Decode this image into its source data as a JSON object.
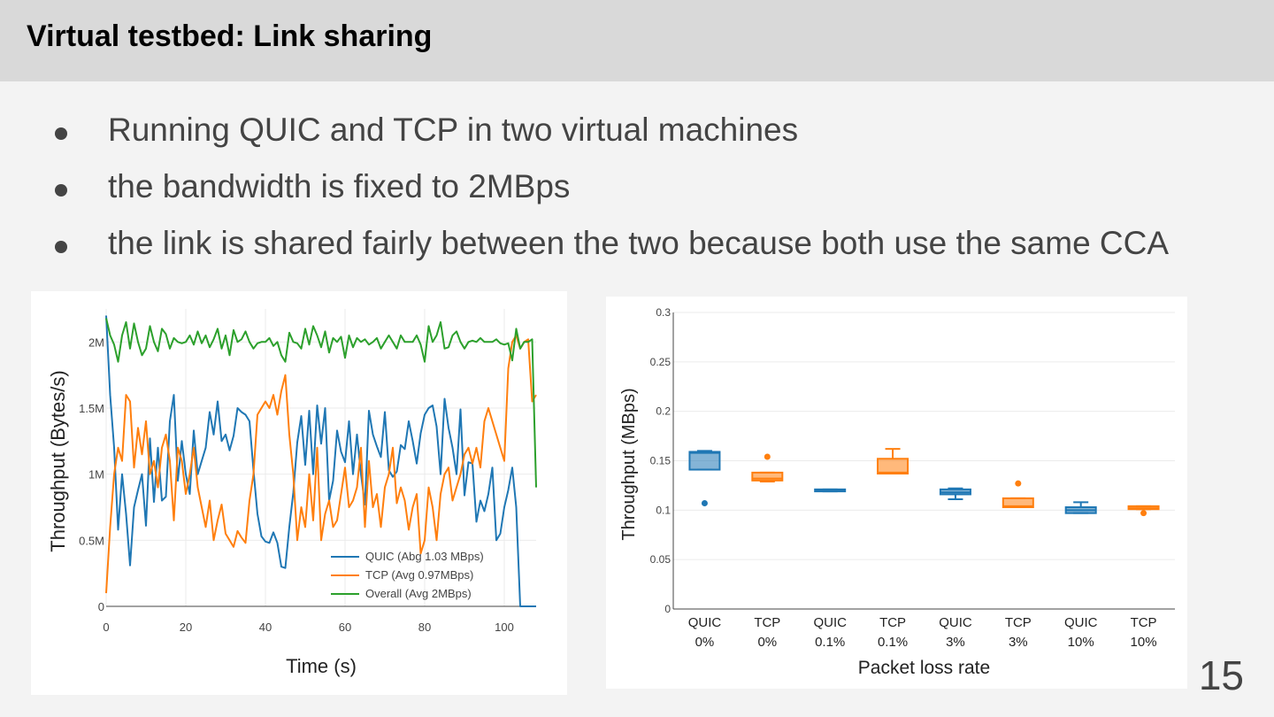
{
  "slide": {
    "title": "Virtual testbed: Link sharing",
    "bullets": [
      "Running QUIC and TCP in two virtual machines",
      "the bandwidth is fixed to 2MBps",
      "the link is shared fairly between the two because both use the same CCA"
    ],
    "page_number": "15"
  },
  "chart_data": [
    {
      "type": "line",
      "xlabel": "Time (s)",
      "ylabel": "Throughput (Bytes/s)",
      "xlim": [
        0,
        108
      ],
      "ylim": [
        0,
        2250000
      ],
      "xticks": [
        0,
        20,
        40,
        60,
        80,
        100
      ],
      "xtick_labels": [
        "0",
        "20",
        "40",
        "60",
        "80",
        "100"
      ],
      "yticks": [
        0,
        500000,
        1000000,
        1500000,
        2000000
      ],
      "ytick_labels": [
        "0",
        "0.5M",
        "1M",
        "1.5M",
        "2M"
      ],
      "grid": true,
      "legend_position": "bottom-right",
      "series": [
        {
          "name": "QUIC (Abg 1.03 MBps)",
          "color": "#1f77b4",
          "x": [
            0,
            1,
            2,
            3,
            4,
            5,
            6,
            7,
            8,
            9,
            10,
            11,
            12,
            13,
            14,
            15,
            16,
            17,
            18,
            19,
            20,
            21,
            22,
            23,
            24,
            25,
            26,
            27,
            28,
            29,
            30,
            31,
            32,
            33,
            34,
            35,
            36,
            37,
            38,
            39,
            40,
            41,
            42,
            43,
            44,
            45,
            46,
            47,
            48,
            49,
            50,
            51,
            52,
            53,
            54,
            55,
            56,
            57,
            58,
            59,
            60,
            61,
            62,
            63,
            64,
            65,
            66,
            67,
            68,
            69,
            70,
            71,
            72,
            73,
            74,
            75,
            76,
            77,
            78,
            79,
            80,
            81,
            82,
            83,
            84,
            85,
            86,
            87,
            88,
            89,
            90,
            91,
            92,
            93,
            94,
            95,
            96,
            97,
            98,
            99,
            100,
            101,
            102,
            103,
            104,
            105,
            106,
            107,
            108
          ],
          "values": [
            2200000,
            1600000,
            1200000,
            580000,
            1000000,
            700000,
            310000,
            750000,
            880000,
            1000000,
            610000,
            1270000,
            790000,
            1200000,
            800000,
            830000,
            1400000,
            1600000,
            950000,
            1250000,
            1000000,
            850000,
            1330000,
            1000000,
            1100000,
            1200000,
            1470000,
            1300000,
            1550000,
            1250000,
            1300000,
            1180000,
            1290000,
            1500000,
            1470000,
            1450000,
            1400000,
            1030000,
            700000,
            530000,
            490000,
            480000,
            560000,
            480000,
            300000,
            290000,
            600000,
            860000,
            1240000,
            1440000,
            1070000,
            1480000,
            1000000,
            1520000,
            1230000,
            1500000,
            800000,
            950000,
            1330000,
            1170000,
            1090000,
            1400000,
            1000000,
            1300000,
            1000000,
            770000,
            1480000,
            1300000,
            1210000,
            1130000,
            1470000,
            1030000,
            980000,
            1020000,
            1220000,
            1190000,
            1400000,
            1250000,
            1080000,
            1310000,
            1450000,
            1500000,
            1520000,
            1360000,
            1000000,
            1570000,
            1350000,
            1200000,
            1000000,
            1490000,
            840000,
            1090000,
            1080000,
            640000,
            800000,
            720000,
            850000,
            1050000,
            500000,
            550000,
            750000,
            880000,
            1050000,
            750000,
            0,
            0,
            0,
            0,
            0
          ]
        },
        {
          "name": "TCP (Avg 0.97MBps)",
          "color": "#ff7f0e",
          "x": [
            0,
            1,
            2,
            3,
            4,
            5,
            6,
            7,
            8,
            9,
            10,
            11,
            12,
            13,
            14,
            15,
            16,
            17,
            18,
            19,
            20,
            21,
            22,
            23,
            24,
            25,
            26,
            27,
            28,
            29,
            30,
            31,
            32,
            33,
            34,
            35,
            36,
            37,
            38,
            39,
            40,
            41,
            42,
            43,
            44,
            45,
            46,
            47,
            48,
            49,
            50,
            51,
            52,
            53,
            54,
            55,
            56,
            57,
            58,
            59,
            60,
            61,
            62,
            63,
            64,
            65,
            66,
            67,
            68,
            69,
            70,
            71,
            72,
            73,
            74,
            75,
            76,
            77,
            78,
            79,
            80,
            81,
            82,
            83,
            84,
            85,
            86,
            87,
            88,
            89,
            90,
            91,
            92,
            93,
            94,
            95,
            96,
            97,
            98,
            99,
            100,
            101,
            102,
            103,
            104,
            105,
            106,
            107,
            108
          ],
          "values": [
            100000,
            600000,
            1000000,
            1200000,
            1100000,
            1600000,
            1550000,
            1050000,
            1350000,
            1150000,
            1400000,
            1000000,
            1100000,
            900000,
            1200000,
            1300000,
            1100000,
            650000,
            1200000,
            1100000,
            850000,
            1000000,
            1200000,
            900000,
            750000,
            600000,
            800000,
            500000,
            650000,
            770000,
            550000,
            500000,
            450000,
            570000,
            520000,
            480000,
            800000,
            1000000,
            1450000,
            1500000,
            1550000,
            1500000,
            1600000,
            1450000,
            1630000,
            1750000,
            1300000,
            1000000,
            500000,
            750000,
            600000,
            1000000,
            650000,
            1200000,
            500000,
            700000,
            800000,
            600000,
            650000,
            850000,
            1050000,
            750000,
            800000,
            900000,
            1200000,
            600000,
            1100000,
            750000,
            850000,
            600000,
            900000,
            1000000,
            1200000,
            780000,
            900000,
            800000,
            580000,
            750000,
            850000,
            400000,
            500000,
            900000,
            750000,
            500000,
            850000,
            1000000,
            1050000,
            800000,
            900000,
            1000000,
            1150000,
            1200000,
            1080000,
            1200000,
            1050000,
            1400000,
            1500000,
            1400000,
            1300000,
            1200000,
            1100000,
            1800000,
            2000000,
            2050000,
            1950000,
            2000000,
            2020000,
            1550000,
            1600000
          ]
        },
        {
          "name": "Overall (Avg 2MBps)",
          "color": "#2ca02c",
          "x": [
            0,
            1,
            2,
            3,
            4,
            5,
            6,
            7,
            8,
            9,
            10,
            11,
            12,
            13,
            14,
            15,
            16,
            17,
            18,
            19,
            20,
            21,
            22,
            23,
            24,
            25,
            26,
            27,
            28,
            29,
            30,
            31,
            32,
            33,
            34,
            35,
            36,
            37,
            38,
            39,
            40,
            41,
            42,
            43,
            44,
            45,
            46,
            47,
            48,
            49,
            50,
            51,
            52,
            53,
            54,
            55,
            56,
            57,
            58,
            59,
            60,
            61,
            62,
            63,
            64,
            65,
            66,
            67,
            68,
            69,
            70,
            71,
            72,
            73,
            74,
            75,
            76,
            77,
            78,
            79,
            80,
            81,
            82,
            83,
            84,
            85,
            86,
            87,
            88,
            89,
            90,
            91,
            92,
            93,
            94,
            95,
            96,
            97,
            98,
            99,
            100,
            101,
            102,
            103,
            104,
            105,
            106,
            107,
            108
          ],
          "values": [
            2180000,
            2050000,
            1980000,
            1850000,
            2050000,
            2150000,
            1950000,
            2140000,
            2000000,
            1900000,
            1950000,
            2120000,
            2000000,
            1930000,
            2100000,
            2060000,
            1950000,
            2030000,
            2000000,
            1990000,
            2000000,
            2050000,
            1980000,
            2080000,
            1990000,
            2050000,
            1960000,
            2020000,
            2100000,
            1950000,
            2050000,
            1900000,
            2090000,
            2000000,
            2020000,
            2080000,
            2000000,
            1950000,
            1990000,
            2000000,
            2000000,
            2030000,
            1970000,
            2000000,
            1900000,
            1850000,
            2070000,
            2000000,
            1990000,
            1950000,
            2100000,
            1980000,
            2120000,
            2050000,
            1960000,
            2080000,
            1920000,
            2030000,
            2000000,
            2040000,
            1880000,
            2050000,
            1960000,
            2030000,
            2000000,
            2020000,
            1980000,
            2000000,
            2030000,
            1950000,
            2000000,
            2050000,
            2000000,
            1950000,
            2050000,
            2000000,
            2000000,
            2000000,
            2050000,
            1980000,
            1850000,
            2120000,
            2000000,
            2050000,
            2150000,
            1950000,
            1960000,
            2050000,
            2080000,
            2000000,
            1950000,
            2000000,
            2010000,
            2000000,
            2030000,
            2000000,
            2000000,
            2000000,
            2020000,
            1990000,
            1980000,
            1990000,
            1860000,
            2100000,
            1950000,
            2000000,
            2000000,
            2020000,
            900000
          ]
        }
      ]
    },
    {
      "type": "box",
      "xlabel": "Packet loss rate",
      "ylabel": "Throughput (MBps)",
      "ylim": [
        0,
        0.3
      ],
      "yticks": [
        0,
        0.05,
        0.1,
        0.15,
        0.2,
        0.25,
        0.3
      ],
      "ytick_labels": [
        "0",
        "0.05",
        "0.1",
        "0.15",
        "0.2",
        "0.25",
        "0.3"
      ],
      "grid": true,
      "categories": [
        [
          "QUIC",
          "0%"
        ],
        [
          "TCP",
          "0%"
        ],
        [
          "QUIC",
          "0.1%"
        ],
        [
          "TCP",
          "0.1%"
        ],
        [
          "QUIC",
          "3%"
        ],
        [
          "TCP",
          "3%"
        ],
        [
          "QUIC",
          "10%"
        ],
        [
          "TCP",
          "10%"
        ]
      ],
      "boxes": [
        {
          "protocol": "QUIC",
          "color": "#1f77b4",
          "min": 0.141,
          "q1": 0.141,
          "median": 0.158,
          "q3": 0.159,
          "max": 0.16,
          "outliers": [
            0.107
          ]
        },
        {
          "protocol": "TCP",
          "color": "#ff7f0e",
          "min": 0.129,
          "q1": 0.13,
          "median": 0.132,
          "q3": 0.138,
          "max": 0.138,
          "outliers": [
            0.154
          ]
        },
        {
          "protocol": "QUIC",
          "color": "#1f77b4",
          "min": 0.119,
          "q1": 0.119,
          "median": 0.12,
          "q3": 0.121,
          "max": 0.121,
          "outliers": []
        },
        {
          "protocol": "TCP",
          "color": "#ff7f0e",
          "min": 0.137,
          "q1": 0.137,
          "median": 0.138,
          "q3": 0.152,
          "max": 0.162,
          "outliers": []
        },
        {
          "protocol": "QUIC",
          "color": "#1f77b4",
          "min": 0.111,
          "q1": 0.116,
          "median": 0.118,
          "q3": 0.121,
          "max": 0.122,
          "outliers": []
        },
        {
          "protocol": "TCP",
          "color": "#ff7f0e",
          "min": 0.103,
          "q1": 0.103,
          "median": 0.104,
          "q3": 0.112,
          "max": 0.112,
          "outliers": [
            0.127
          ]
        },
        {
          "protocol": "QUIC",
          "color": "#1f77b4",
          "min": 0.097,
          "q1": 0.097,
          "median": 0.1,
          "q3": 0.103,
          "max": 0.108,
          "outliers": []
        },
        {
          "protocol": "TCP",
          "color": "#ff7f0e",
          "min": 0.101,
          "q1": 0.101,
          "median": 0.102,
          "q3": 0.104,
          "max": 0.104,
          "outliers": [
            0.097
          ]
        }
      ]
    }
  ]
}
